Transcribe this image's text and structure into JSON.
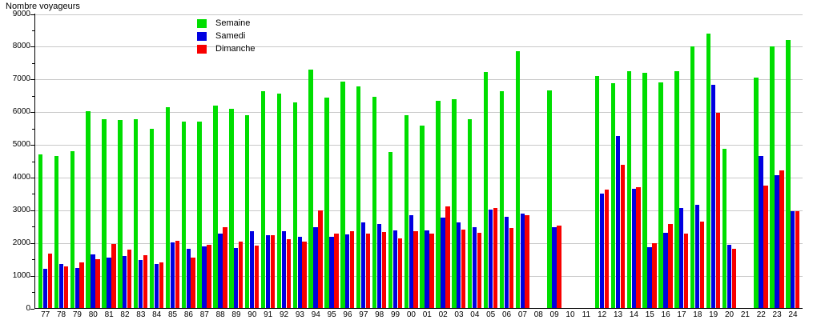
{
  "chart_data": {
    "type": "bar",
    "title": "Nombre voyageurs",
    "ylabel": "Nombre voyageurs",
    "ylim": [
      0,
      9000
    ],
    "yticks": [
      0,
      1000,
      2000,
      3000,
      4000,
      5000,
      6000,
      7000,
      8000,
      9000
    ],
    "ytick_minor_step": 500,
    "grid": true,
    "legend_position": "top-center",
    "legend_entries": [
      "Semaine",
      "Samedi",
      "Dimanche"
    ],
    "categories": [
      "77",
      "78",
      "79",
      "80",
      "81",
      "82",
      "83",
      "84",
      "85",
      "86",
      "87",
      "88",
      "89",
      "90",
      "91",
      "92",
      "93",
      "94",
      "95",
      "96",
      "97",
      "98",
      "99",
      "00",
      "01",
      "02",
      "03",
      "04",
      "05",
      "06",
      "07",
      "08",
      "09",
      "10",
      "11",
      "12",
      "13",
      "14",
      "15",
      "16",
      "17",
      "18",
      "19",
      "20",
      "21",
      "22",
      "23",
      "24"
    ],
    "series": [
      {
        "name": "Semaine",
        "color": "#00de00",
        "values": [
          4700,
          4670,
          4800,
          6030,
          5780,
          5750,
          5780,
          5480,
          6150,
          5700,
          5720,
          6200,
          6090,
          5900,
          6630,
          6570,
          6300,
          7300,
          6450,
          6930,
          6780,
          6460,
          4780,
          5900,
          5580,
          6340,
          6400,
          5780,
          7230,
          6640,
          7870,
          null,
          6660,
          null,
          null,
          7110,
          6880,
          7260,
          7200,
          6920,
          7250,
          8020,
          8410,
          4890,
          null,
          7060,
          8000,
          8200
        ]
      },
      {
        "name": "Samedi",
        "color": "#0000e0",
        "values": [
          1200,
          1360,
          1240,
          1660,
          1560,
          1590,
          1470,
          1350,
          2020,
          1820,
          1890,
          2290,
          1840,
          2360,
          2230,
          2350,
          2190,
          2490,
          2190,
          2270,
          2620,
          2580,
          2380,
          2840,
          2390,
          2780,
          2620,
          2480,
          3020,
          2810,
          2890,
          null,
          2480,
          null,
          null,
          3520,
          5270,
          3650,
          1880,
          2310,
          3080,
          3160,
          6840,
          1950,
          null,
          4650,
          4070,
          2980
        ]
      },
      {
        "name": "Dimanche",
        "color": "#f80000",
        "values": [
          1680,
          1280,
          1400,
          1510,
          1970,
          1790,
          1620,
          1410,
          2060,
          1560,
          1940,
          2490,
          2050,
          1930,
          2240,
          2120,
          2040,
          2990,
          2280,
          2370,
          2290,
          2340,
          2150,
          2360,
          2290,
          3120,
          2420,
          2310,
          3080,
          2450,
          2860,
          null,
          2540,
          null,
          null,
          3620,
          4390,
          3700,
          1990,
          2570,
          2290,
          2650,
          5980,
          1830,
          null,
          3760,
          4230,
          2960
        ]
      }
    ]
  }
}
